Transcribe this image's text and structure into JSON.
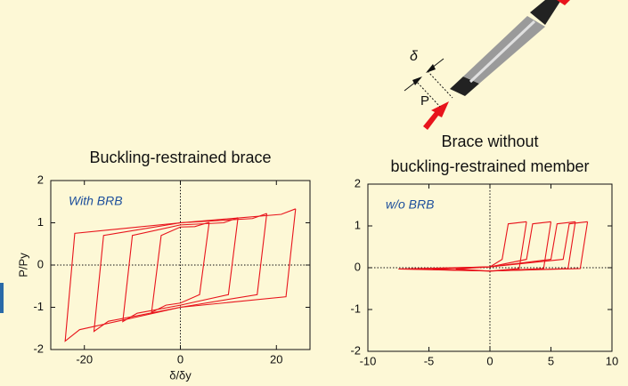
{
  "diagram": {
    "delta_label": "δ",
    "force_label": "P"
  },
  "chart_data": [
    {
      "type": "line",
      "title": [
        "Buckling-restrained brace"
      ],
      "annotation": "With BRB",
      "x_label": "δ/δy",
      "y_label": "P/Py",
      "xlim": [
        -27,
        27
      ],
      "xticks": [
        -20,
        0,
        20
      ],
      "ylim": [
        -2,
        2
      ],
      "yticks": [
        -2,
        -1,
        0,
        1,
        2
      ],
      "zero_lines": true,
      "series": [
        {
          "color": "#e8141c",
          "x": [
            6,
            4,
            0,
            -3,
            -6,
            -4,
            0,
            3,
            6
          ],
          "values": [
            1.01,
            -0.7,
            -0.9,
            -0.95,
            -1.12,
            0.7,
            0.9,
            0.91,
            1.01
          ]
        },
        {
          "color": "#e8141c",
          "x": [
            12,
            10,
            0,
            -9,
            -12,
            -10,
            0,
            9,
            12
          ],
          "values": [
            1.12,
            -0.7,
            -0.95,
            -1.14,
            -1.34,
            0.7,
            0.95,
            1.0,
            1.12
          ]
        },
        {
          "color": "#e8141c",
          "x": [
            18,
            16,
            0,
            -15,
            -18,
            -16,
            0,
            15,
            18
          ],
          "values": [
            1.22,
            -0.7,
            -1.0,
            -1.33,
            -1.57,
            0.7,
            1.0,
            1.1,
            1.22
          ]
        },
        {
          "color": "#e8141c",
          "x": [
            24,
            22,
            0,
            -21,
            -24,
            -22,
            0,
            21,
            24
          ],
          "values": [
            1.33,
            -0.75,
            -1.0,
            -1.53,
            -1.8,
            0.75,
            1.0,
            1.2,
            1.33
          ]
        }
      ]
    },
    {
      "type": "line",
      "title": [
        "Brace without",
        "buckling-restrained member"
      ],
      "annotation": "w/o BRB",
      "xlim": [
        -10,
        10
      ],
      "xticks": [
        -10,
        -5,
        0,
        5,
        10
      ],
      "ylim": [
        -2,
        2
      ],
      "yticks": [
        -2,
        -1,
        0,
        1,
        2
      ],
      "zero_lines": true,
      "series": [
        {
          "color": "#e8141c",
          "x": [
            3,
            2.4,
            0,
            -2.8,
            0,
            1,
            1.5,
            3
          ],
          "values": [
            1.1,
            -0.02,
            -0.08,
            -0.03,
            0.02,
            0.2,
            1.05,
            1.1
          ]
        },
        {
          "color": "#e8141c",
          "x": [
            5,
            4.4,
            0,
            -4.7,
            0,
            3,
            3.5,
            5
          ],
          "values": [
            1.1,
            -0.02,
            -0.08,
            -0.03,
            0.02,
            0.2,
            1.05,
            1.1
          ]
        },
        {
          "color": "#e8141c",
          "x": [
            7,
            6.4,
            0,
            -6.6,
            0,
            5,
            5.5,
            7
          ],
          "values": [
            1.1,
            -0.02,
            -0.08,
            -0.03,
            0.02,
            0.2,
            1.05,
            1.1
          ]
        },
        {
          "color": "#e8141c",
          "x": [
            8,
            7.4,
            0,
            -7.5,
            0,
            6,
            6.5,
            8
          ],
          "values": [
            1.1,
            -0.02,
            -0.08,
            -0.03,
            0.02,
            0.2,
            1.05,
            1.1
          ]
        }
      ]
    }
  ]
}
